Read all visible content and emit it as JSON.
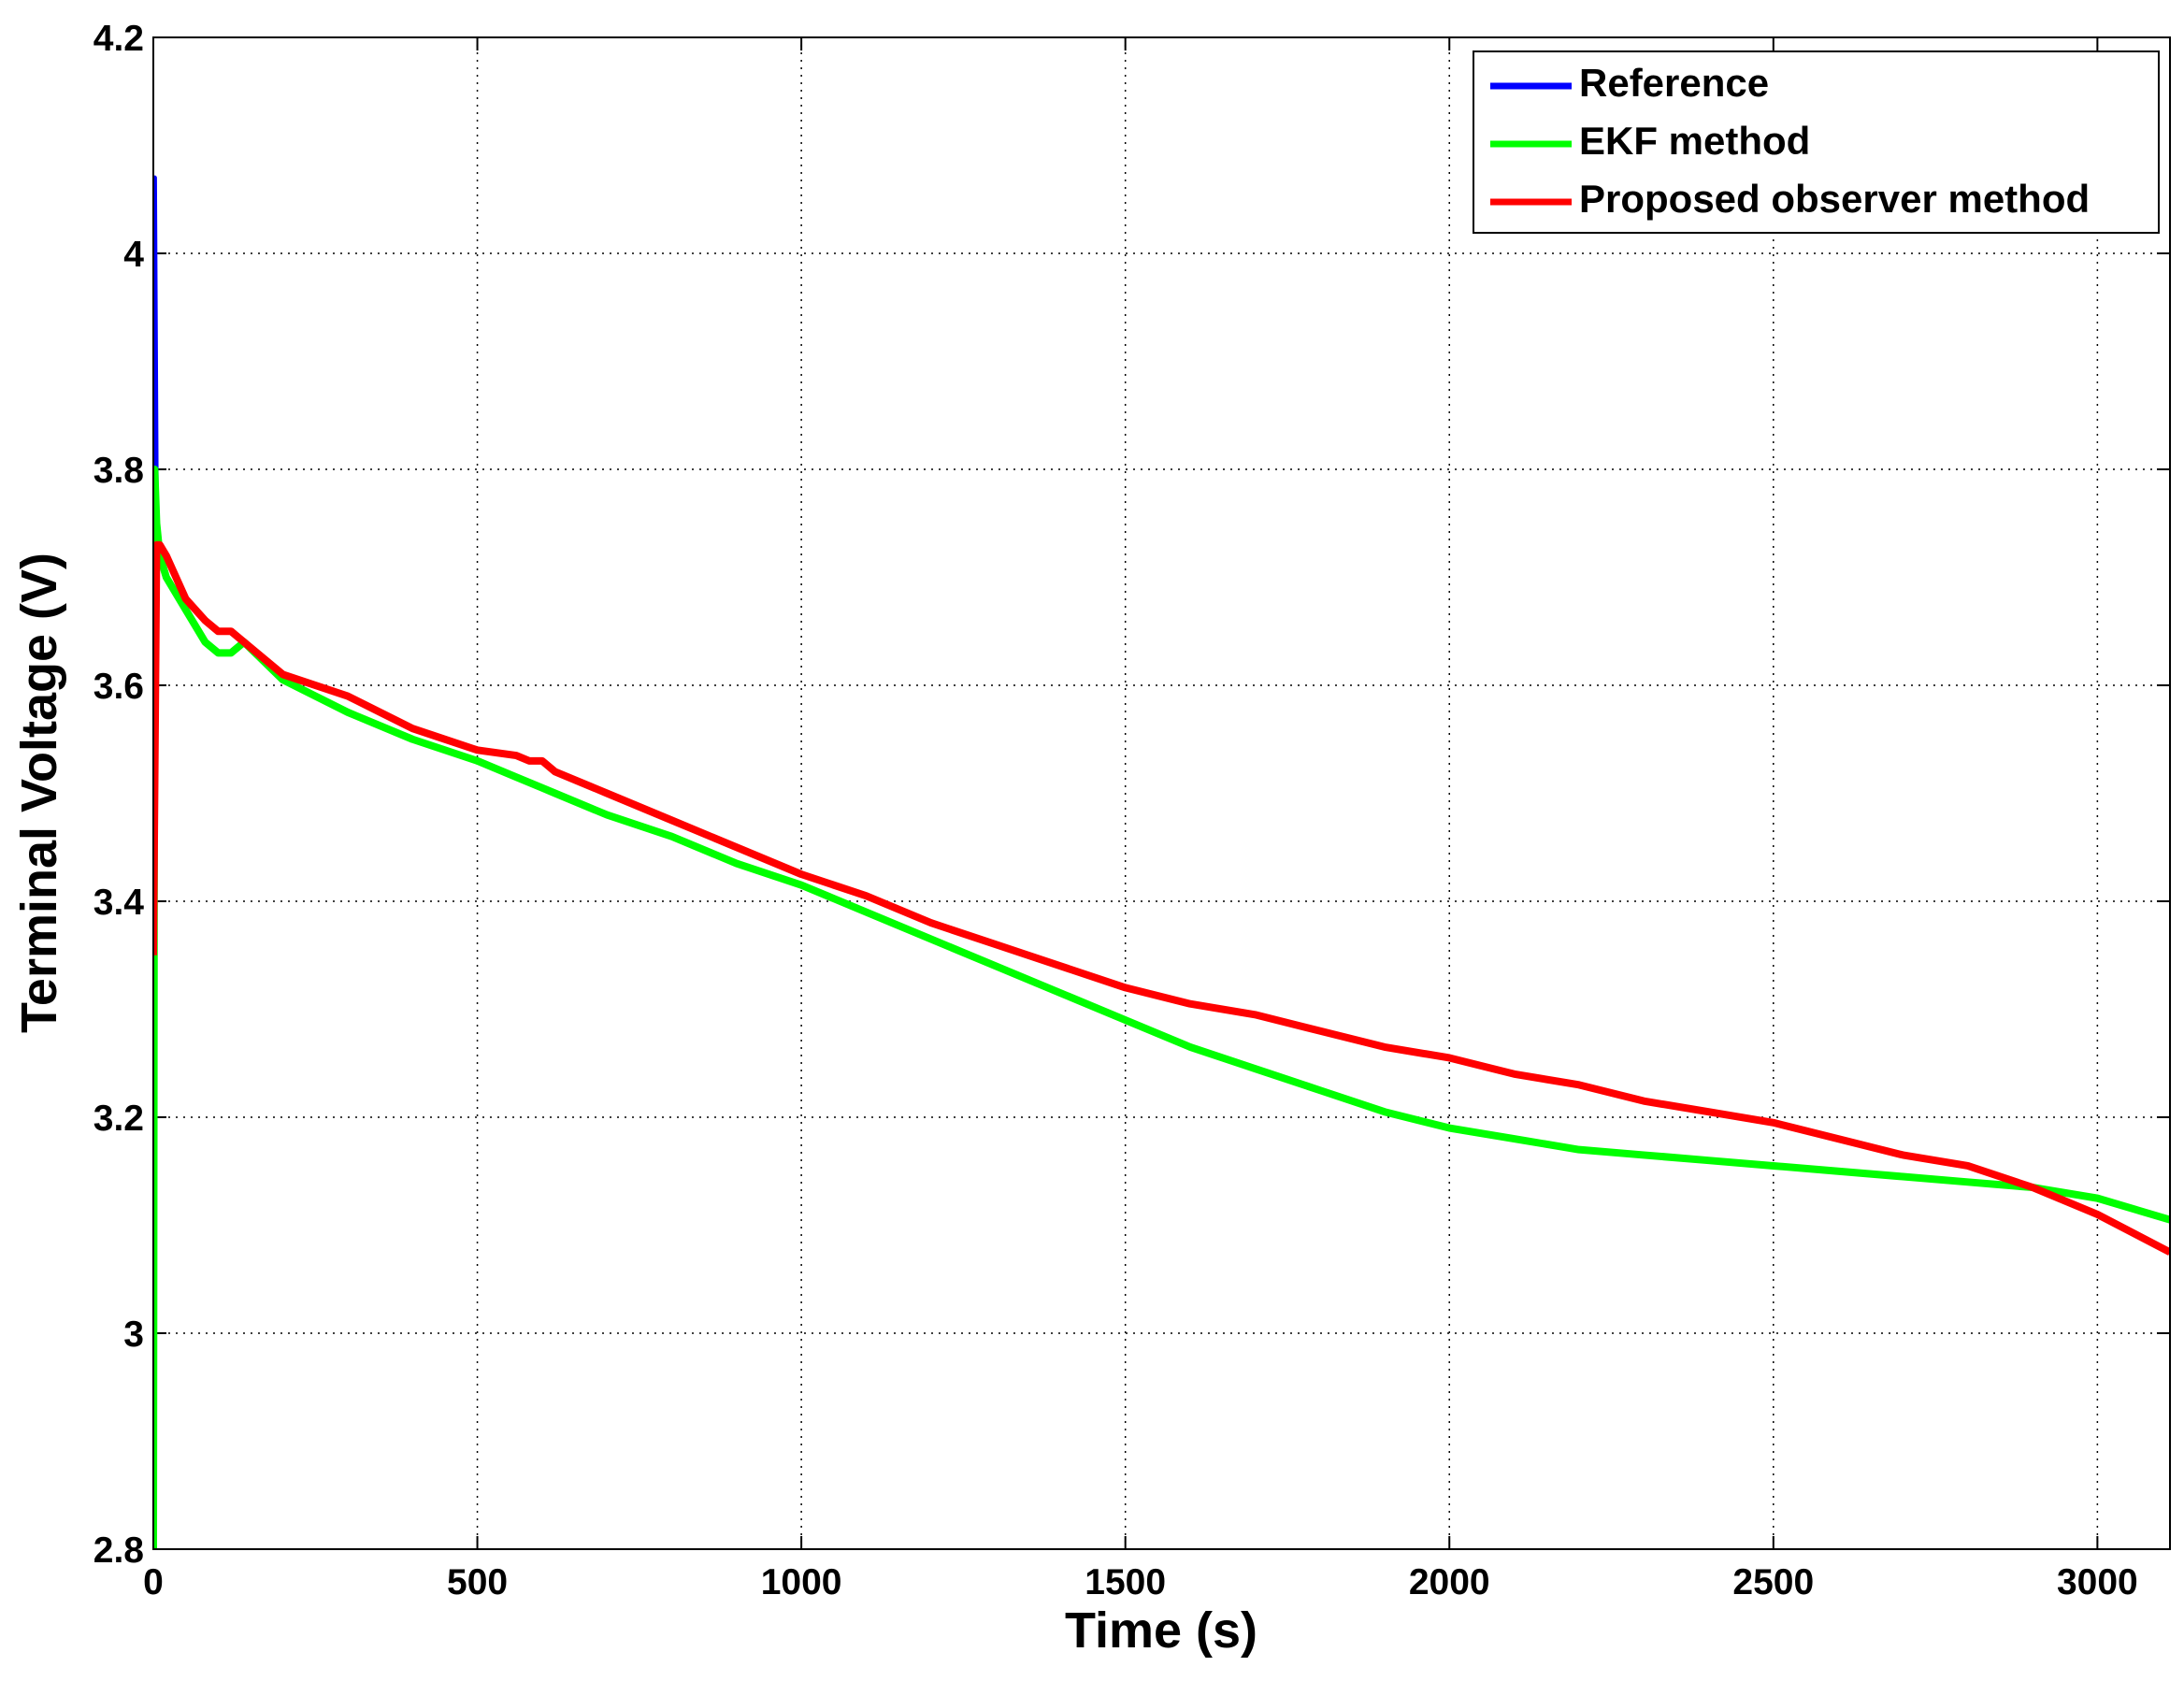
{
  "chart_data": {
    "type": "line",
    "xlabel": "Time (s)",
    "ylabel": "Terminal Voltage (V)",
    "x": [
      0,
      2,
      5,
      10,
      20,
      50,
      80,
      100,
      120,
      140,
      200,
      300,
      400,
      500,
      560,
      580,
      600,
      620,
      700,
      800,
      900,
      1000,
      1100,
      1200,
      1300,
      1400,
      1500,
      1600,
      1700,
      1800,
      1900,
      2000,
      2100,
      2200,
      2300,
      2400,
      2500,
      2600,
      2700,
      2800,
      2900,
      3000,
      3112
    ],
    "series": [
      {
        "name": "Reference",
        "color": "#0000ff",
        "values": [
          3.4,
          4.07,
          3.74,
          3.73,
          3.72,
          3.68,
          3.66,
          3.65,
          3.65,
          3.64,
          3.61,
          3.59,
          3.56,
          3.54,
          3.535,
          3.53,
          3.53,
          3.52,
          3.5,
          3.475,
          3.45,
          3.425,
          3.405,
          3.38,
          3.36,
          3.34,
          3.32,
          3.305,
          3.295,
          3.28,
          3.265,
          3.255,
          3.24,
          3.23,
          3.215,
          3.205,
          3.195,
          3.18,
          3.165,
          3.155,
          3.135,
          3.11,
          3.075
        ]
      },
      {
        "name": "EKF method",
        "color": "#00ff00",
        "values": [
          2.8,
          3.8,
          3.75,
          3.72,
          3.7,
          3.67,
          3.64,
          3.63,
          3.63,
          3.64,
          3.605,
          3.575,
          3.55,
          3.53,
          3.515,
          3.51,
          3.505,
          3.5,
          3.48,
          3.46,
          3.435,
          3.415,
          3.39,
          3.365,
          3.34,
          3.315,
          3.29,
          3.265,
          3.245,
          3.225,
          3.205,
          3.19,
          3.18,
          3.17,
          3.165,
          3.16,
          3.155,
          3.15,
          3.145,
          3.14,
          3.135,
          3.125,
          3.105
        ]
      },
      {
        "name": "Proposed observer method",
        "color": "#ff0000",
        "values": [
          3.35,
          3.5,
          3.73,
          3.73,
          3.72,
          3.68,
          3.66,
          3.65,
          3.65,
          3.64,
          3.61,
          3.59,
          3.56,
          3.54,
          3.535,
          3.53,
          3.53,
          3.52,
          3.5,
          3.475,
          3.45,
          3.425,
          3.405,
          3.38,
          3.36,
          3.34,
          3.32,
          3.305,
          3.295,
          3.28,
          3.265,
          3.255,
          3.24,
          3.23,
          3.215,
          3.205,
          3.195,
          3.18,
          3.165,
          3.155,
          3.135,
          3.11,
          3.075
        ]
      }
    ],
    "xlim": [
      0,
      3112
    ],
    "xticks": [
      0,
      500,
      1000,
      1500,
      2000,
      2500,
      3000
    ],
    "ylim": [
      2.8,
      4.2
    ],
    "yticks": [
      2.8,
      3,
      3.2,
      3.4,
      3.6,
      3.8,
      4,
      4.2
    ],
    "grid": true,
    "legend": "upper right"
  }
}
